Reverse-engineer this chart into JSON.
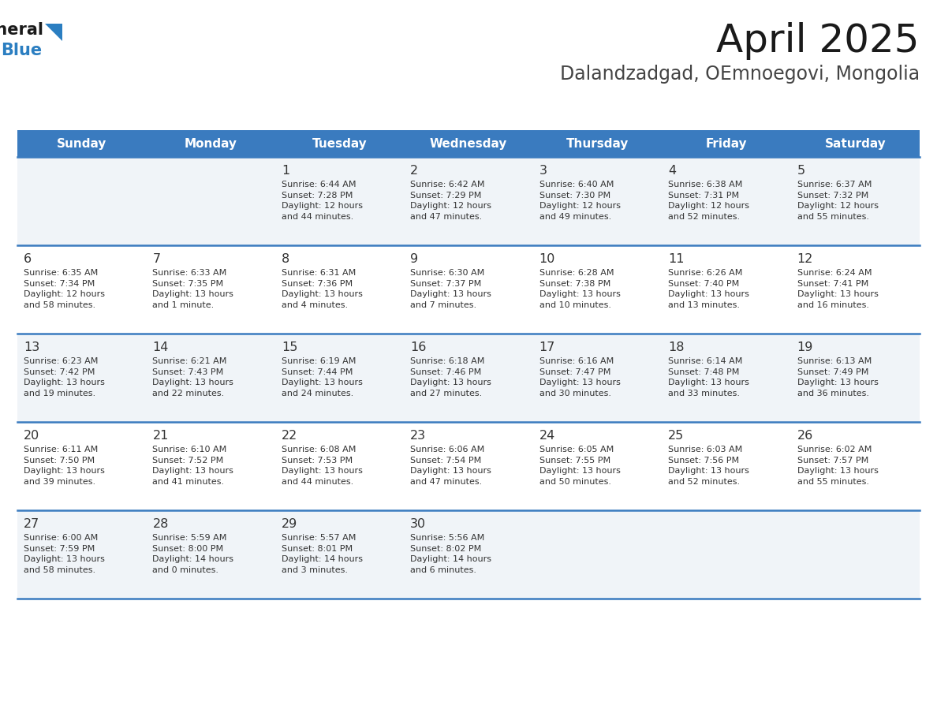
{
  "title": "April 2025",
  "subtitle": "Dalandzadgad, OEmnoegovi, Mongolia",
  "header_bg": "#3a7bbf",
  "header_text": "#ffffff",
  "row_bg_odd": "#f0f4f8",
  "row_bg_even": "#ffffff",
  "divider_color": "#3a7bbf",
  "text_color": "#333333",
  "days_of_week": [
    "Sunday",
    "Monday",
    "Tuesday",
    "Wednesday",
    "Thursday",
    "Friday",
    "Saturday"
  ],
  "calendar_data": [
    [
      {
        "day": "",
        "info": ""
      },
      {
        "day": "",
        "info": ""
      },
      {
        "day": "1",
        "info": "Sunrise: 6:44 AM\nSunset: 7:28 PM\nDaylight: 12 hours\nand 44 minutes."
      },
      {
        "day": "2",
        "info": "Sunrise: 6:42 AM\nSunset: 7:29 PM\nDaylight: 12 hours\nand 47 minutes."
      },
      {
        "day": "3",
        "info": "Sunrise: 6:40 AM\nSunset: 7:30 PM\nDaylight: 12 hours\nand 49 minutes."
      },
      {
        "day": "4",
        "info": "Sunrise: 6:38 AM\nSunset: 7:31 PM\nDaylight: 12 hours\nand 52 minutes."
      },
      {
        "day": "5",
        "info": "Sunrise: 6:37 AM\nSunset: 7:32 PM\nDaylight: 12 hours\nand 55 minutes."
      }
    ],
    [
      {
        "day": "6",
        "info": "Sunrise: 6:35 AM\nSunset: 7:34 PM\nDaylight: 12 hours\nand 58 minutes."
      },
      {
        "day": "7",
        "info": "Sunrise: 6:33 AM\nSunset: 7:35 PM\nDaylight: 13 hours\nand 1 minute."
      },
      {
        "day": "8",
        "info": "Sunrise: 6:31 AM\nSunset: 7:36 PM\nDaylight: 13 hours\nand 4 minutes."
      },
      {
        "day": "9",
        "info": "Sunrise: 6:30 AM\nSunset: 7:37 PM\nDaylight: 13 hours\nand 7 minutes."
      },
      {
        "day": "10",
        "info": "Sunrise: 6:28 AM\nSunset: 7:38 PM\nDaylight: 13 hours\nand 10 minutes."
      },
      {
        "day": "11",
        "info": "Sunrise: 6:26 AM\nSunset: 7:40 PM\nDaylight: 13 hours\nand 13 minutes."
      },
      {
        "day": "12",
        "info": "Sunrise: 6:24 AM\nSunset: 7:41 PM\nDaylight: 13 hours\nand 16 minutes."
      }
    ],
    [
      {
        "day": "13",
        "info": "Sunrise: 6:23 AM\nSunset: 7:42 PM\nDaylight: 13 hours\nand 19 minutes."
      },
      {
        "day": "14",
        "info": "Sunrise: 6:21 AM\nSunset: 7:43 PM\nDaylight: 13 hours\nand 22 minutes."
      },
      {
        "day": "15",
        "info": "Sunrise: 6:19 AM\nSunset: 7:44 PM\nDaylight: 13 hours\nand 24 minutes."
      },
      {
        "day": "16",
        "info": "Sunrise: 6:18 AM\nSunset: 7:46 PM\nDaylight: 13 hours\nand 27 minutes."
      },
      {
        "day": "17",
        "info": "Sunrise: 6:16 AM\nSunset: 7:47 PM\nDaylight: 13 hours\nand 30 minutes."
      },
      {
        "day": "18",
        "info": "Sunrise: 6:14 AM\nSunset: 7:48 PM\nDaylight: 13 hours\nand 33 minutes."
      },
      {
        "day": "19",
        "info": "Sunrise: 6:13 AM\nSunset: 7:49 PM\nDaylight: 13 hours\nand 36 minutes."
      }
    ],
    [
      {
        "day": "20",
        "info": "Sunrise: 6:11 AM\nSunset: 7:50 PM\nDaylight: 13 hours\nand 39 minutes."
      },
      {
        "day": "21",
        "info": "Sunrise: 6:10 AM\nSunset: 7:52 PM\nDaylight: 13 hours\nand 41 minutes."
      },
      {
        "day": "22",
        "info": "Sunrise: 6:08 AM\nSunset: 7:53 PM\nDaylight: 13 hours\nand 44 minutes."
      },
      {
        "day": "23",
        "info": "Sunrise: 6:06 AM\nSunset: 7:54 PM\nDaylight: 13 hours\nand 47 minutes."
      },
      {
        "day": "24",
        "info": "Sunrise: 6:05 AM\nSunset: 7:55 PM\nDaylight: 13 hours\nand 50 minutes."
      },
      {
        "day": "25",
        "info": "Sunrise: 6:03 AM\nSunset: 7:56 PM\nDaylight: 13 hours\nand 52 minutes."
      },
      {
        "day": "26",
        "info": "Sunrise: 6:02 AM\nSunset: 7:57 PM\nDaylight: 13 hours\nand 55 minutes."
      }
    ],
    [
      {
        "day": "27",
        "info": "Sunrise: 6:00 AM\nSunset: 7:59 PM\nDaylight: 13 hours\nand 58 minutes."
      },
      {
        "day": "28",
        "info": "Sunrise: 5:59 AM\nSunset: 8:00 PM\nDaylight: 14 hours\nand 0 minutes."
      },
      {
        "day": "29",
        "info": "Sunrise: 5:57 AM\nSunset: 8:01 PM\nDaylight: 14 hours\nand 3 minutes."
      },
      {
        "day": "30",
        "info": "Sunrise: 5:56 AM\nSunset: 8:02 PM\nDaylight: 14 hours\nand 6 minutes."
      },
      {
        "day": "",
        "info": ""
      },
      {
        "day": "",
        "info": ""
      },
      {
        "day": "",
        "info": ""
      }
    ]
  ],
  "fig_width": 11.88,
  "fig_height": 9.18,
  "dpi": 100
}
